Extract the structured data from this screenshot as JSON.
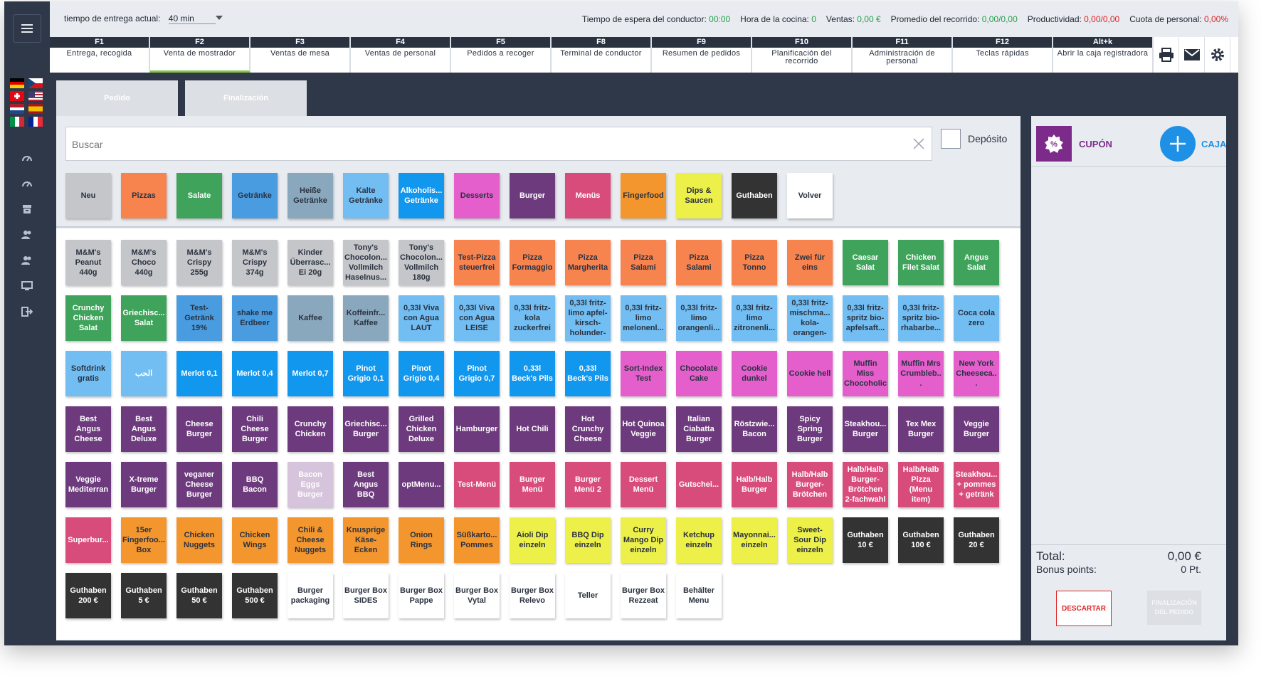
{
  "topbar": {
    "delivery_label": "tiempo de entrega actual:",
    "delivery_value": "40 min",
    "stats": [
      {
        "label": "Tiempo de espera del conductor:",
        "value": "00:00",
        "color": "green"
      },
      {
        "label": "Hora de la cocina:",
        "value": "0",
        "color": "green"
      },
      {
        "label": "Ventas:",
        "value": "0,00 €",
        "color": "green"
      },
      {
        "label": "Promedio del recorrido:",
        "value": "0,00/0,00",
        "color": "green"
      },
      {
        "label": "Productividad:",
        "value": "0,00/0,00",
        "color": "red"
      },
      {
        "label": "Cuota de personal:",
        "value": "0,00%",
        "color": "red"
      }
    ]
  },
  "fkeys": [
    {
      "key": "F1",
      "label": "Entrega, recogida"
    },
    {
      "key": "F2",
      "label": "Venta de mostrador",
      "active": true
    },
    {
      "key": "F3",
      "label": "Ventas de mesa"
    },
    {
      "key": "F4",
      "label": "Ventas de personal"
    },
    {
      "key": "F5",
      "label": "Pedidos a recoger"
    },
    {
      "key": "F8",
      "label": "Terminal de conductor"
    },
    {
      "key": "F9",
      "label": "Resumen de pedidos"
    },
    {
      "key": "F10",
      "label": "Planificación del recorrido"
    },
    {
      "key": "F11",
      "label": "Administración de personal"
    },
    {
      "key": "F12",
      "label": "Teclas rápidas"
    },
    {
      "key": "Alt+k",
      "label": "Abrir la caja registradora"
    }
  ],
  "tabs": {
    "order": "Pedido",
    "finish": "Finalización"
  },
  "search": {
    "placeholder": "Buscar"
  },
  "deposit_label": "Depósito",
  "categories": [
    {
      "label": "Neu",
      "color": "#c4c6c9",
      "dark": true
    },
    {
      "label": "Pizzas",
      "color": "#f7834f",
      "dark": true
    },
    {
      "label": "Salate",
      "color": "#3fa35b"
    },
    {
      "label": "Getränke",
      "color": "#4a9ce0",
      "dark": true
    },
    {
      "label": "Heiße Getränke",
      "color": "#8aa8bd",
      "dark": true
    },
    {
      "label": "Kalte Getränke",
      "color": "#72bdf2",
      "dark": true
    },
    {
      "label": "Alkoholis... Getränke",
      "color": "#1297ef"
    },
    {
      "label": "Desserts",
      "color": "#e45fcc",
      "dark": true
    },
    {
      "label": "Burger",
      "color": "#6d3b7d"
    },
    {
      "label": "Menüs",
      "color": "#d84c7c"
    },
    {
      "label": "Fingerfood",
      "color": "#f4962e",
      "dark": true
    },
    {
      "label": "Dips & Saucen",
      "color": "#eef04a",
      "dark": true
    },
    {
      "label": "Guthaben",
      "color": "#333333"
    },
    {
      "label": "Volver",
      "color": "#ffffff",
      "dark": true
    }
  ],
  "products": [
    [
      {
        "label": "M&M's Peanut 440g",
        "color": "#c4c6c9",
        "dark": true
      },
      {
        "label": "M&M's Choco 440g",
        "color": "#c4c6c9",
        "dark": true
      },
      {
        "label": "M&M's Crispy 255g",
        "color": "#c4c6c9",
        "dark": true
      },
      {
        "label": "M&M's Crispy 374g",
        "color": "#c4c6c9",
        "dark": true
      },
      {
        "label": "Kinder Überrasc... Ei 20g",
        "color": "#c4c6c9",
        "dark": true
      },
      {
        "label": "Tony's Chocolon... Vollmilch Haselnus...",
        "color": "#c4c6c9",
        "dark": true
      },
      {
        "label": "Tony's Chocolon... Vollmilch 180g",
        "color": "#c4c6c9",
        "dark": true
      },
      {
        "label": "Test-Pizza steuerfrei",
        "color": "#f7834f",
        "dark": true
      },
      {
        "label": "Pizza Formaggio",
        "color": "#f7834f",
        "dark": true
      },
      {
        "label": "Pizza Margherita",
        "color": "#f7834f",
        "dark": true
      },
      {
        "label": "Pizza Salami",
        "color": "#f7834f",
        "dark": true
      },
      {
        "label": "Pizza Salami",
        "color": "#f7834f",
        "dark": true
      },
      {
        "label": "Pizza Tonno",
        "color": "#f7834f",
        "dark": true
      },
      {
        "label": "Zwei für eins",
        "color": "#f7834f",
        "dark": true
      },
      {
        "label": "Caesar Salat",
        "color": "#3fa35b"
      },
      {
        "label": "Chicken Filet Salat",
        "color": "#3fa35b"
      },
      {
        "label": "Angus Salat",
        "color": "#3fa35b"
      }
    ],
    [
      {
        "label": "Crunchy Chicken Salat",
        "color": "#3fa35b"
      },
      {
        "label": "Griechisc... Salat",
        "color": "#3fa35b"
      },
      {
        "label": "Test-Getränk 19%",
        "color": "#4a9ce0",
        "dark": true
      },
      {
        "label": "shake me Erdbeer",
        "color": "#4a9ce0",
        "dark": true
      },
      {
        "label": "Kaffee",
        "color": "#8aa8bd",
        "dark": true
      },
      {
        "label": "Koffeinfr... Kaffee",
        "color": "#8aa8bd",
        "dark": true
      },
      {
        "label": "0,33l Viva con Agua LAUT",
        "color": "#72bdf2",
        "dark": true
      },
      {
        "label": "0,33l Viva con Agua LEISE",
        "color": "#72bdf2",
        "dark": true
      },
      {
        "label": "0,33l fritz-kola zuckerfrei",
        "color": "#72bdf2",
        "dark": true
      },
      {
        "label": "0,33l fritz-limo apfel-kirsch-holunder-",
        "color": "#72bdf2",
        "dark": true
      },
      {
        "label": "0,33l fritz-limo melonenl...",
        "color": "#72bdf2",
        "dark": true
      },
      {
        "label": "0,33l fritz-limo orangenli...",
        "color": "#72bdf2",
        "dark": true
      },
      {
        "label": "0,33l fritz-limo zitronenli...",
        "color": "#72bdf2",
        "dark": true
      },
      {
        "label": "0,33l fritz-mischma... kola-orangen-",
        "color": "#72bdf2",
        "dark": true
      },
      {
        "label": "0,33l fritz-spritz bio-apfelsaft...",
        "color": "#72bdf2",
        "dark": true
      },
      {
        "label": "0,33l fritz-spritz bio-rhabarbe...",
        "color": "#72bdf2",
        "dark": true
      },
      {
        "label": "Coca cola zero",
        "color": "#72bdf2",
        "dark": true
      }
    ],
    [
      {
        "label": "Softdrink gratis",
        "color": "#72bdf2",
        "dark": true
      },
      {
        "label": "الحب",
        "color": "#72bdf2"
      },
      {
        "label": "Merlot 0,1",
        "color": "#1297ef"
      },
      {
        "label": "Merlot 0,4",
        "color": "#1297ef"
      },
      {
        "label": "Merlot 0,7",
        "color": "#1297ef"
      },
      {
        "label": "Pinot Grigio 0,1",
        "color": "#1297ef"
      },
      {
        "label": "Pinot Grigio 0,4",
        "color": "#1297ef"
      },
      {
        "label": "Pinot Grigio 0,7",
        "color": "#1297ef"
      },
      {
        "label": "0,33l Beck's Pils",
        "color": "#1297ef"
      },
      {
        "label": "0,33l Beck's Pils",
        "color": "#1297ef"
      },
      {
        "label": "Sort-Index Test",
        "color": "#e45fcc",
        "dark": true
      },
      {
        "label": "Chocolate Cake",
        "color": "#e45fcc",
        "dark": true
      },
      {
        "label": "Cookie dunkel",
        "color": "#e45fcc",
        "dark": true
      },
      {
        "label": "Cookie hell",
        "color": "#e45fcc",
        "dark": true
      },
      {
        "label": "Muffin Miss Chocoholic",
        "color": "#e45fcc",
        "dark": true
      },
      {
        "label": "Muffin Mrs Crumbleb...",
        "color": "#e45fcc",
        "dark": true
      },
      {
        "label": "New York Cheeseca...",
        "color": "#e45fcc",
        "dark": true
      }
    ],
    [
      {
        "label": "Best Angus Cheese",
        "color": "#6d3b7d"
      },
      {
        "label": "Best Angus Deluxe",
        "color": "#6d3b7d"
      },
      {
        "label": "Cheese Burger",
        "color": "#6d3b7d"
      },
      {
        "label": "Chili Cheese Burger",
        "color": "#6d3b7d"
      },
      {
        "label": "Crunchy Chicken",
        "color": "#6d3b7d"
      },
      {
        "label": "Griechisc... Burger",
        "color": "#6d3b7d"
      },
      {
        "label": "Grilled Chicken Deluxe",
        "color": "#6d3b7d"
      },
      {
        "label": "Hamburger",
        "color": "#6d3b7d"
      },
      {
        "label": "Hot Chili",
        "color": "#6d3b7d"
      },
      {
        "label": "Hot Crunchy Cheese",
        "color": "#6d3b7d"
      },
      {
        "label": "Hot Quinoa Veggie",
        "color": "#6d3b7d"
      },
      {
        "label": "Italian Ciabatta Burger",
        "color": "#6d3b7d"
      },
      {
        "label": "Röstzwie... Bacon",
        "color": "#6d3b7d"
      },
      {
        "label": "Spicy Spring Burger",
        "color": "#6d3b7d"
      },
      {
        "label": "Steakhou... Burger",
        "color": "#6d3b7d"
      },
      {
        "label": "Tex Mex Burger",
        "color": "#6d3b7d"
      },
      {
        "label": "Veggie Burger",
        "color": "#6d3b7d"
      }
    ],
    [
      {
        "label": "Veggie Mediterran",
        "color": "#6d3b7d"
      },
      {
        "label": "X-treme Burger",
        "color": "#6d3b7d"
      },
      {
        "label": "veganer Cheese Burger",
        "color": "#6d3b7d"
      },
      {
        "label": "BBQ Bacon",
        "color": "#6d3b7d"
      },
      {
        "label": "Bacon Eggs Burger",
        "color": "#d6c3dc"
      },
      {
        "label": "Best Angus BBQ",
        "color": "#6d3b7d"
      },
      {
        "label": "optMenu...",
        "color": "#6d3b7d"
      },
      {
        "label": "Test-Menü",
        "color": "#d84c7c"
      },
      {
        "label": "Burger Menü",
        "color": "#d84c7c"
      },
      {
        "label": "Burger Menü 2",
        "color": "#d84c7c"
      },
      {
        "label": "Dessert Menü",
        "color": "#d84c7c"
      },
      {
        "label": "Gutschei...",
        "color": "#d84c7c"
      },
      {
        "label": "Halb/Halb Burger",
        "color": "#d84c7c"
      },
      {
        "label": "Halb/Halb Burger-Brötchen",
        "color": "#d84c7c"
      },
      {
        "label": "Halb/Halb Burger-Brötchen 2-fachwahl",
        "color": "#d84c7c"
      },
      {
        "label": "Halb/Halb Pizza (Menu item)",
        "color": "#d84c7c"
      },
      {
        "label": "Steakhou... + pommes + getränk",
        "color": "#d84c7c"
      }
    ],
    [
      {
        "label": "Superbur...",
        "color": "#d84c7c"
      },
      {
        "label": "15er Fingerfoo... Box",
        "color": "#f4962e",
        "dark": true
      },
      {
        "label": "Chicken Nuggets",
        "color": "#f4962e",
        "dark": true
      },
      {
        "label": "Chicken Wings",
        "color": "#f4962e",
        "dark": true
      },
      {
        "label": "Chili & Cheese Nuggets",
        "color": "#f4962e",
        "dark": true
      },
      {
        "label": "Knusprige Käse-Ecken",
        "color": "#f4962e",
        "dark": true
      },
      {
        "label": "Onion Rings",
        "color": "#f4962e",
        "dark": true
      },
      {
        "label": "Süßkarto... Pommes",
        "color": "#f4962e",
        "dark": true
      },
      {
        "label": "Aioli Dip einzeln",
        "color": "#eef04a",
        "dark": true
      },
      {
        "label": "BBQ Dip einzeln",
        "color": "#eef04a",
        "dark": true
      },
      {
        "label": "Curry Mango Dip einzeln",
        "color": "#eef04a",
        "dark": true
      },
      {
        "label": "Ketchup einzeln",
        "color": "#eef04a",
        "dark": true
      },
      {
        "label": "Mayonnai... einzeln",
        "color": "#eef04a",
        "dark": true
      },
      {
        "label": "Sweet-Sour Dip einzeln",
        "color": "#eef04a",
        "dark": true
      },
      {
        "label": "Guthaben 10 €",
        "color": "#333333"
      },
      {
        "label": "Guthaben 100 €",
        "color": "#333333"
      },
      {
        "label": "Guthaben 20 €",
        "color": "#333333"
      }
    ],
    [
      {
        "label": "Guthaben 200 €",
        "color": "#333333"
      },
      {
        "label": "Guthaben 5 €",
        "color": "#333333"
      },
      {
        "label": "Guthaben 50 €",
        "color": "#333333"
      },
      {
        "label": "Guthaben 500 €",
        "color": "#333333"
      },
      {
        "label": "Burger packaging",
        "color": "#ffffff",
        "dark": true
      },
      {
        "label": "Burger Box SIDES",
        "color": "#ffffff",
        "dark": true
      },
      {
        "label": "Burger Box Pappe",
        "color": "#ffffff",
        "dark": true
      },
      {
        "label": "Burger Box Vytal",
        "color": "#ffffff",
        "dark": true
      },
      {
        "label": "Burger Box Relevo",
        "color": "#ffffff",
        "dark": true
      },
      {
        "label": "Teller",
        "color": "#ffffff",
        "dark": true
      },
      {
        "label": "Burger Box Rezzeat",
        "color": "#ffffff",
        "dark": true
      },
      {
        "label": "Behälter Menu",
        "color": "#ffffff",
        "dark": true
      }
    ]
  ],
  "right_panel": {
    "coupon_label": "CUPÓN",
    "add_label": "CAJA",
    "total_label": "Total:",
    "total_value": "0,00 €",
    "bonus_label": "Bonus points:",
    "bonus_value": "0 Pt.",
    "discard_label": "DESCARTAR",
    "finalize_label": "FINALIZACIÓN DEL PEDIDO"
  }
}
